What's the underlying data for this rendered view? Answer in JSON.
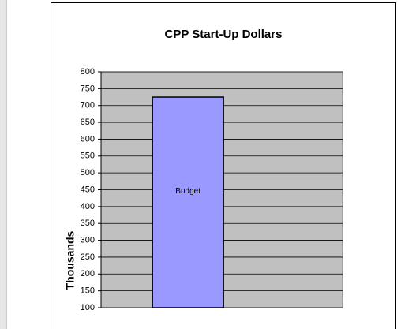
{
  "chart_data": {
    "type": "bar",
    "title": "CPP Start-Up Dollars",
    "y_label": "Thousands",
    "categories": [
      "Budget"
    ],
    "values": [
      725
    ],
    "color": "#9999ff",
    "ylim": [
      100,
      800
    ],
    "yticks": [
      100,
      150,
      200,
      250,
      300,
      350,
      400,
      450,
      500,
      550,
      600,
      650,
      700,
      750,
      800
    ],
    "grid": true
  }
}
